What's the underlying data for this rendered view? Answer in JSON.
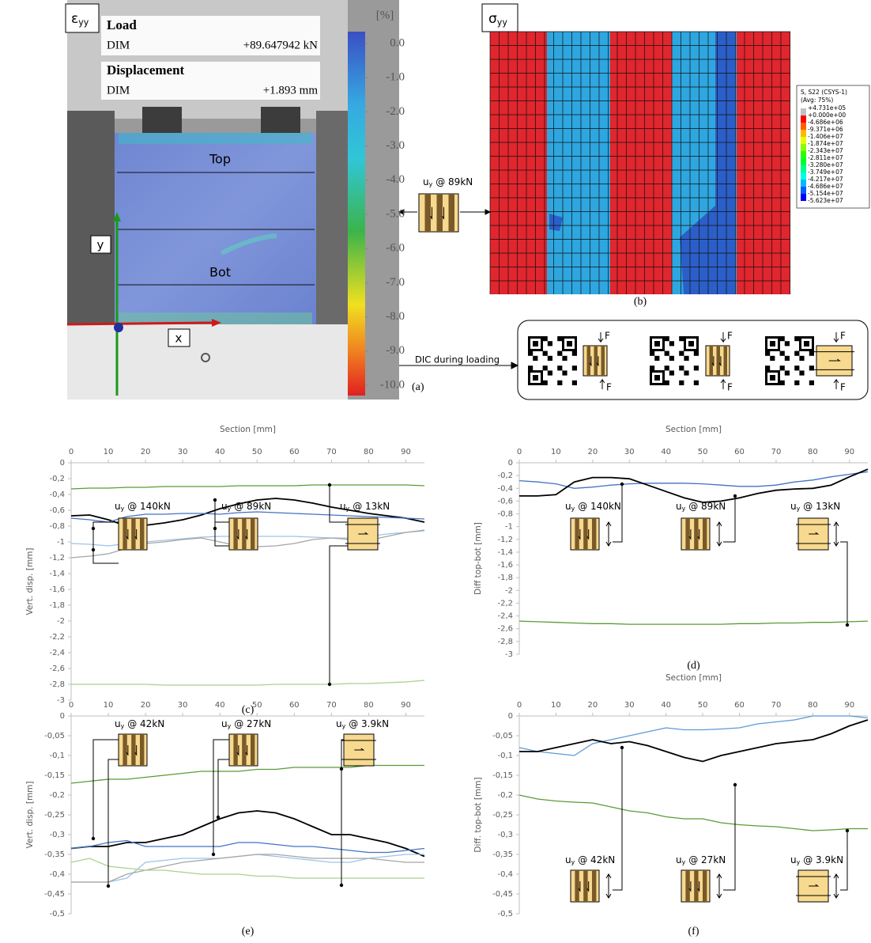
{
  "panel_a": {
    "strain": {
      "symbol": "ε",
      "subscript": "yy"
    },
    "load_title": "Load",
    "load_source": "DIM",
    "load_value": "+89.647942 kN",
    "disp_title": "Displacement",
    "disp_source": "DIM",
    "disp_value": "+1.893 mm",
    "unit": "[%]",
    "colorbar": {
      "lim": [
        0,
        -10
      ],
      "ticks": [
        {
          "value": 0,
          "label": "0.0"
        },
        {
          "value": -1,
          "label": "-1.0"
        },
        {
          "value": -2,
          "label": "-2.0"
        },
        {
          "value": -3,
          "label": "-3.0"
        },
        {
          "value": -4,
          "label": "-4.0"
        },
        {
          "value": -5,
          "label": "-5.0"
        },
        {
          "value": -6,
          "label": "-6.0"
        },
        {
          "value": -7,
          "label": "-7.0"
        },
        {
          "value": -8,
          "label": "-8.0"
        },
        {
          "value": -9,
          "label": "-9.0"
        },
        {
          "value": -10,
          "label": "-10.0"
        }
      ]
    },
    "top": "Top",
    "bot": "Bot",
    "y_axis": "y",
    "x_axis": "x",
    "caption": "(a)"
  },
  "panel_b": {
    "stress": {
      "symbol": "σ",
      "subscript": "yy"
    },
    "legend": {
      "title": "S, S22 (CSYS-1)",
      "subtitle": "(Avg: 75%)",
      "labels": [
        "+4.731e+05",
        "+0.000e+00",
        "-4.686e+06",
        "-9.371e+06",
        "-1.406e+07",
        "-1.874e+07",
        "-2.343e+07",
        "-2.811e+07",
        "-3.280e+07",
        "-3.749e+07",
        "-4.217e+07",
        "-4.686e+07",
        "-5.154e+07",
        "-5.623e+07"
      ],
      "colors": [
        "#c0c0c0",
        "#ff0000",
        "#ff5e00",
        "#ffb900",
        "#e3ff00",
        "#8aff00",
        "#2aff00",
        "#00ff32",
        "#00ff8e",
        "#00ffe8",
        "#00b9ff",
        "#005eff",
        "#0000ff"
      ]
    },
    "caption": "(b)"
  },
  "schematic": {
    "label": {
      "symbol": "u",
      "subscript": "y",
      "text": "@ 89kN"
    },
    "dic_label": "DIC during loading",
    "forces": [
      "F",
      "F",
      "F",
      "F",
      "F",
      "F"
    ]
  },
  "chart_data": [
    {
      "type": "line",
      "xlabel": "Section [mm]",
      "ylabel": "Vert. disp. [mm]",
      "caption": "(c)",
      "x": [
        0,
        5,
        10,
        15,
        20,
        25,
        30,
        35,
        40,
        45,
        50,
        55,
        60,
        65,
        70,
        75,
        80,
        85,
        90,
        95
      ],
      "xlim": [
        0,
        95
      ],
      "xticks": [
        0,
        10,
        20,
        30,
        40,
        50,
        60,
        70,
        80,
        90
      ],
      "ylim": [
        0,
        -3
      ],
      "yticks": [
        0,
        {
          "value": -0.2,
          "label": "-0,2"
        },
        {
          "value": -0.4,
          "label": "-0,4"
        },
        {
          "value": -0.6,
          "label": "-0,6"
        },
        {
          "value": -0.8,
          "label": "-0,8"
        },
        -1,
        {
          "value": -1.2,
          "label": "-1,2"
        },
        {
          "value": -1.4,
          "label": "-1,4"
        },
        {
          "value": -1.6,
          "label": "-1,6"
        },
        {
          "value": -1.8,
          "label": "-1,8"
        },
        -2,
        {
          "value": -2.2,
          "label": "-2,2"
        },
        {
          "value": -2.4,
          "label": "-2,4"
        },
        {
          "value": -2.6,
          "label": "-2,6"
        },
        {
          "value": -2.8,
          "label": "-2,8"
        },
        -3
      ],
      "series": [
        {
          "color": "#5b9b36",
          "values": [
            -0.33,
            -0.32,
            -0.32,
            -0.31,
            -0.31,
            -0.3,
            -0.3,
            -0.3,
            -0.3,
            -0.29,
            -0.29,
            -0.29,
            -0.29,
            -0.28,
            -0.28,
            -0.28,
            -0.28,
            -0.28,
            -0.28,
            -0.29
          ]
        },
        {
          "color": "#a9d18e",
          "values": [
            -2.8,
            -2.8,
            -2.8,
            -2.8,
            -2.8,
            -2.81,
            -2.81,
            -2.81,
            -2.81,
            -2.81,
            -2.81,
            -2.8,
            -2.8,
            -2.8,
            -2.8,
            -2.79,
            -2.79,
            -2.78,
            -2.77,
            -2.75
          ]
        },
        {
          "color": "#000000",
          "values": [
            -0.67,
            -0.66,
            -0.72,
            -0.8,
            -0.79,
            -0.76,
            -0.72,
            -0.66,
            -0.58,
            -0.52,
            -0.47,
            -0.45,
            -0.47,
            -0.51,
            -0.56,
            -0.6,
            -0.64,
            -0.67,
            -0.7,
            -0.75
          ]
        },
        {
          "color": "#4472c4",
          "values": [
            -0.7,
            -0.72,
            -0.75,
            -0.68,
            -0.65,
            -0.65,
            -0.64,
            -0.64,
            -0.65,
            -0.63,
            -0.62,
            -0.63,
            -0.64,
            -0.65,
            -0.66,
            -0.67,
            -0.68,
            -0.69,
            -0.7,
            -0.71
          ]
        },
        {
          "color": "#9dc3e6",
          "values": [
            -1.02,
            -1.03,
            -1.05,
            -1.02,
            -1.0,
            -0.98,
            -0.96,
            -0.94,
            -0.93,
            -0.93,
            -0.93,
            -0.93,
            -0.93,
            -0.94,
            -0.95,
            -0.95,
            -0.93,
            -0.9,
            -0.88,
            -0.86
          ]
        },
        {
          "color": "#a5a5a5",
          "values": [
            -1.2,
            -1.18,
            -1.15,
            -1.08,
            -1.02,
            -1.0,
            -0.97,
            -0.95,
            -1.0,
            -1.05,
            -1.06,
            -1.05,
            -1.02,
            -0.97,
            -0.95,
            -0.97,
            -0.98,
            -0.93,
            -0.88,
            -0.85
          ]
        }
      ],
      "annotations": [
        {
          "symbol": "u",
          "subscript": "y",
          "text": "@ 140kN"
        },
        {
          "symbol": "u",
          "subscript": "y",
          "text": "@ 89kN"
        },
        {
          "symbol": "u",
          "subscript": "y",
          "text": "@ 13kN"
        }
      ]
    },
    {
      "type": "line",
      "xlabel": "Section [mm]",
      "ylabel": "Diff top-bot [mm]",
      "caption": "(d)",
      "x": [
        0,
        5,
        10,
        15,
        20,
        25,
        30,
        35,
        40,
        45,
        50,
        55,
        60,
        65,
        70,
        75,
        80,
        85,
        90,
        95
      ],
      "xlim": [
        0,
        95
      ],
      "xticks": [
        0,
        10,
        20,
        30,
        40,
        50,
        60,
        70,
        80,
        90
      ],
      "ylim": [
        0,
        -3
      ],
      "yticks": [
        0,
        {
          "value": -0.2,
          "label": "-0,2"
        },
        {
          "value": -0.4,
          "label": "-0,4"
        },
        {
          "value": -0.6,
          "label": "-0,6"
        },
        {
          "value": -0.8,
          "label": "-0,8"
        },
        -1,
        {
          "value": -1.2,
          "label": "-1,2"
        },
        {
          "value": -1.4,
          "label": "-1,4"
        },
        {
          "value": -1.6,
          "label": "-1,6"
        },
        {
          "value": -1.8,
          "label": "-1,8"
        },
        -2,
        {
          "value": -2.2,
          "label": "-2,2"
        },
        {
          "value": -2.4,
          "label": "-2,4"
        },
        {
          "value": -2.6,
          "label": "-2,6"
        },
        {
          "value": -2.8,
          "label": "-2,8"
        },
        -3
      ],
      "series": [
        {
          "color": "#4472c4",
          "values": [
            -0.28,
            -0.3,
            -0.33,
            -0.4,
            -0.38,
            -0.35,
            -0.33,
            -0.32,
            -0.32,
            -0.32,
            -0.33,
            -0.35,
            -0.37,
            -0.37,
            -0.35,
            -0.3,
            -0.27,
            -0.22,
            -0.18,
            -0.14
          ]
        },
        {
          "color": "#000000",
          "values": [
            -0.52,
            -0.52,
            -0.5,
            -0.3,
            -0.23,
            -0.23,
            -0.25,
            -0.35,
            -0.45,
            -0.55,
            -0.62,
            -0.6,
            -0.55,
            -0.48,
            -0.43,
            -0.41,
            -0.4,
            -0.35,
            -0.22,
            -0.1
          ]
        },
        {
          "color": "#5b9b36",
          "values": [
            -2.48,
            -2.49,
            -2.5,
            -2.51,
            -2.52,
            -2.52,
            -2.53,
            -2.53,
            -2.53,
            -2.53,
            -2.53,
            -2.53,
            -2.52,
            -2.52,
            -2.51,
            -2.51,
            -2.5,
            -2.5,
            -2.49,
            -2.48
          ]
        }
      ],
      "annotations": [
        {
          "symbol": "u",
          "subscript": "y",
          "text": "@ 140kN"
        },
        {
          "symbol": "u",
          "subscript": "y",
          "text": "@ 89kN"
        },
        {
          "symbol": "u",
          "subscript": "y",
          "text": "@ 13kN"
        }
      ]
    },
    {
      "type": "line",
      "ylabel": "Vert. disp. [mm]",
      "caption": "(e)",
      "x": [
        0,
        5,
        10,
        15,
        20,
        25,
        30,
        35,
        40,
        45,
        50,
        55,
        60,
        65,
        70,
        75,
        80,
        85,
        90,
        95
      ],
      "xlim": [
        0,
        95
      ],
      "xticks": [
        0,
        10,
        20,
        30,
        40,
        50,
        60,
        70,
        80,
        90
      ],
      "ylim": [
        0,
        -0.5
      ],
      "yticks": [
        0,
        {
          "value": -0.05,
          "label": "-0,05"
        },
        {
          "value": -0.1,
          "label": "-0,1"
        },
        {
          "value": -0.15,
          "label": "-0,15"
        },
        {
          "value": -0.2,
          "label": "-0,2"
        },
        {
          "value": -0.25,
          "label": "-0,25"
        },
        {
          "value": -0.3,
          "label": "-0,3"
        },
        {
          "value": -0.35,
          "label": "-0,35"
        },
        {
          "value": -0.4,
          "label": "-0,4"
        },
        {
          "value": -0.45,
          "label": "-0,45"
        },
        {
          "value": -0.5,
          "label": "-0,5"
        }
      ],
      "series": [
        {
          "color": "#5b9b36",
          "values": [
            -0.17,
            -0.165,
            -0.16,
            -0.16,
            -0.155,
            -0.15,
            -0.145,
            -0.14,
            -0.14,
            -0.14,
            -0.135,
            -0.135,
            -0.13,
            -0.13,
            -0.13,
            -0.13,
            -0.125,
            -0.125,
            -0.125,
            -0.125
          ]
        },
        {
          "color": "#000000",
          "values": [
            -0.335,
            -0.33,
            -0.33,
            -0.32,
            -0.32,
            -0.31,
            -0.3,
            -0.28,
            -0.26,
            -0.245,
            -0.24,
            -0.245,
            -0.26,
            -0.28,
            -0.3,
            -0.3,
            -0.31,
            -0.32,
            -0.335,
            -0.355
          ]
        },
        {
          "color": "#4472c4",
          "values": [
            -0.335,
            -0.33,
            -0.32,
            -0.315,
            -0.33,
            -0.33,
            -0.33,
            -0.33,
            -0.33,
            -0.32,
            -0.32,
            -0.325,
            -0.33,
            -0.33,
            -0.335,
            -0.34,
            -0.345,
            -0.345,
            -0.34,
            -0.335
          ]
        },
        {
          "color": "#9dc3e6",
          "values": [
            -0.42,
            -0.42,
            -0.42,
            -0.41,
            -0.37,
            -0.365,
            -0.36,
            -0.36,
            -0.36,
            -0.355,
            -0.35,
            -0.355,
            -0.36,
            -0.365,
            -0.37,
            -0.37,
            -0.36,
            -0.355,
            -0.35,
            -0.35
          ]
        },
        {
          "color": "#a5a5a5",
          "values": [
            -0.42,
            -0.42,
            -0.42,
            -0.4,
            -0.39,
            -0.38,
            -0.37,
            -0.365,
            -0.36,
            -0.355,
            -0.35,
            -0.35,
            -0.355,
            -0.36,
            -0.36,
            -0.36,
            -0.36,
            -0.365,
            -0.37,
            -0.37
          ]
        },
        {
          "color": "#a9d18e",
          "values": [
            -0.37,
            -0.36,
            -0.38,
            -0.385,
            -0.39,
            -0.39,
            -0.395,
            -0.4,
            -0.4,
            -0.4,
            -0.405,
            -0.405,
            -0.41,
            -0.41,
            -0.41,
            -0.41,
            -0.41,
            -0.41,
            -0.41,
            -0.41
          ]
        }
      ],
      "annotations": [
        {
          "symbol": "u",
          "subscript": "y",
          "text": "@ 42kN"
        },
        {
          "symbol": "u",
          "subscript": "y",
          "text": "@ 27kN"
        },
        {
          "symbol": "u",
          "subscript": "y",
          "text": "@ 3.9kN"
        }
      ]
    },
    {
      "type": "line",
      "xlabel": "Section [mm]",
      "ylabel": "Diff. top-bot [mm]",
      "caption": "(f)",
      "x": [
        0,
        5,
        10,
        15,
        20,
        25,
        30,
        35,
        40,
        45,
        50,
        55,
        60,
        65,
        70,
        75,
        80,
        85,
        90,
        95
      ],
      "xlim": [
        0,
        95
      ],
      "xticks": [
        0,
        10,
        20,
        30,
        40,
        50,
        60,
        70,
        80,
        90
      ],
      "ylim": [
        0,
        -0.5
      ],
      "yticks": [
        0,
        {
          "value": -0.05,
          "label": "-0,05"
        },
        {
          "value": -0.1,
          "label": "-0,1"
        },
        {
          "value": -0.15,
          "label": "-0,15"
        },
        {
          "value": -0.2,
          "label": "-0,2"
        },
        {
          "value": -0.25,
          "label": "-0,25"
        },
        {
          "value": -0.3,
          "label": "-0,3"
        },
        {
          "value": -0.35,
          "label": "-0,35"
        },
        {
          "value": -0.4,
          "label": "-0,4"
        },
        {
          "value": -0.45,
          "label": "-0,45"
        },
        {
          "value": -0.5,
          "label": "-0,5"
        }
      ],
      "series": [
        {
          "color": "#5b9bd5",
          "values": [
            -0.08,
            -0.09,
            -0.095,
            -0.1,
            -0.07,
            -0.06,
            -0.05,
            -0.04,
            -0.03,
            -0.035,
            -0.035,
            -0.033,
            -0.03,
            -0.02,
            -0.015,
            -0.01,
            0,
            0,
            0,
            -0.005
          ]
        },
        {
          "color": "#000000",
          "values": [
            -0.09,
            -0.09,
            -0.08,
            -0.07,
            -0.06,
            -0.07,
            -0.065,
            -0.075,
            -0.09,
            -0.105,
            -0.115,
            -0.1,
            -0.09,
            -0.08,
            -0.07,
            -0.065,
            -0.06,
            -0.045,
            -0.025,
            -0.01
          ]
        },
        {
          "color": "#5b9b36",
          "values": [
            -0.2,
            -0.21,
            -0.215,
            -0.218,
            -0.22,
            -0.23,
            -0.24,
            -0.245,
            -0.255,
            -0.26,
            -0.26,
            -0.27,
            -0.275,
            -0.278,
            -0.28,
            -0.285,
            -0.29,
            -0.288,
            -0.285,
            -0.285
          ]
        }
      ],
      "annotations": [
        {
          "symbol": "u",
          "subscript": "y",
          "text": "@ 42kN"
        },
        {
          "symbol": "u",
          "subscript": "y",
          "text": "@ 27kN"
        },
        {
          "symbol": "u",
          "subscript": "y",
          "text": "@ 3.9kN"
        }
      ]
    }
  ]
}
